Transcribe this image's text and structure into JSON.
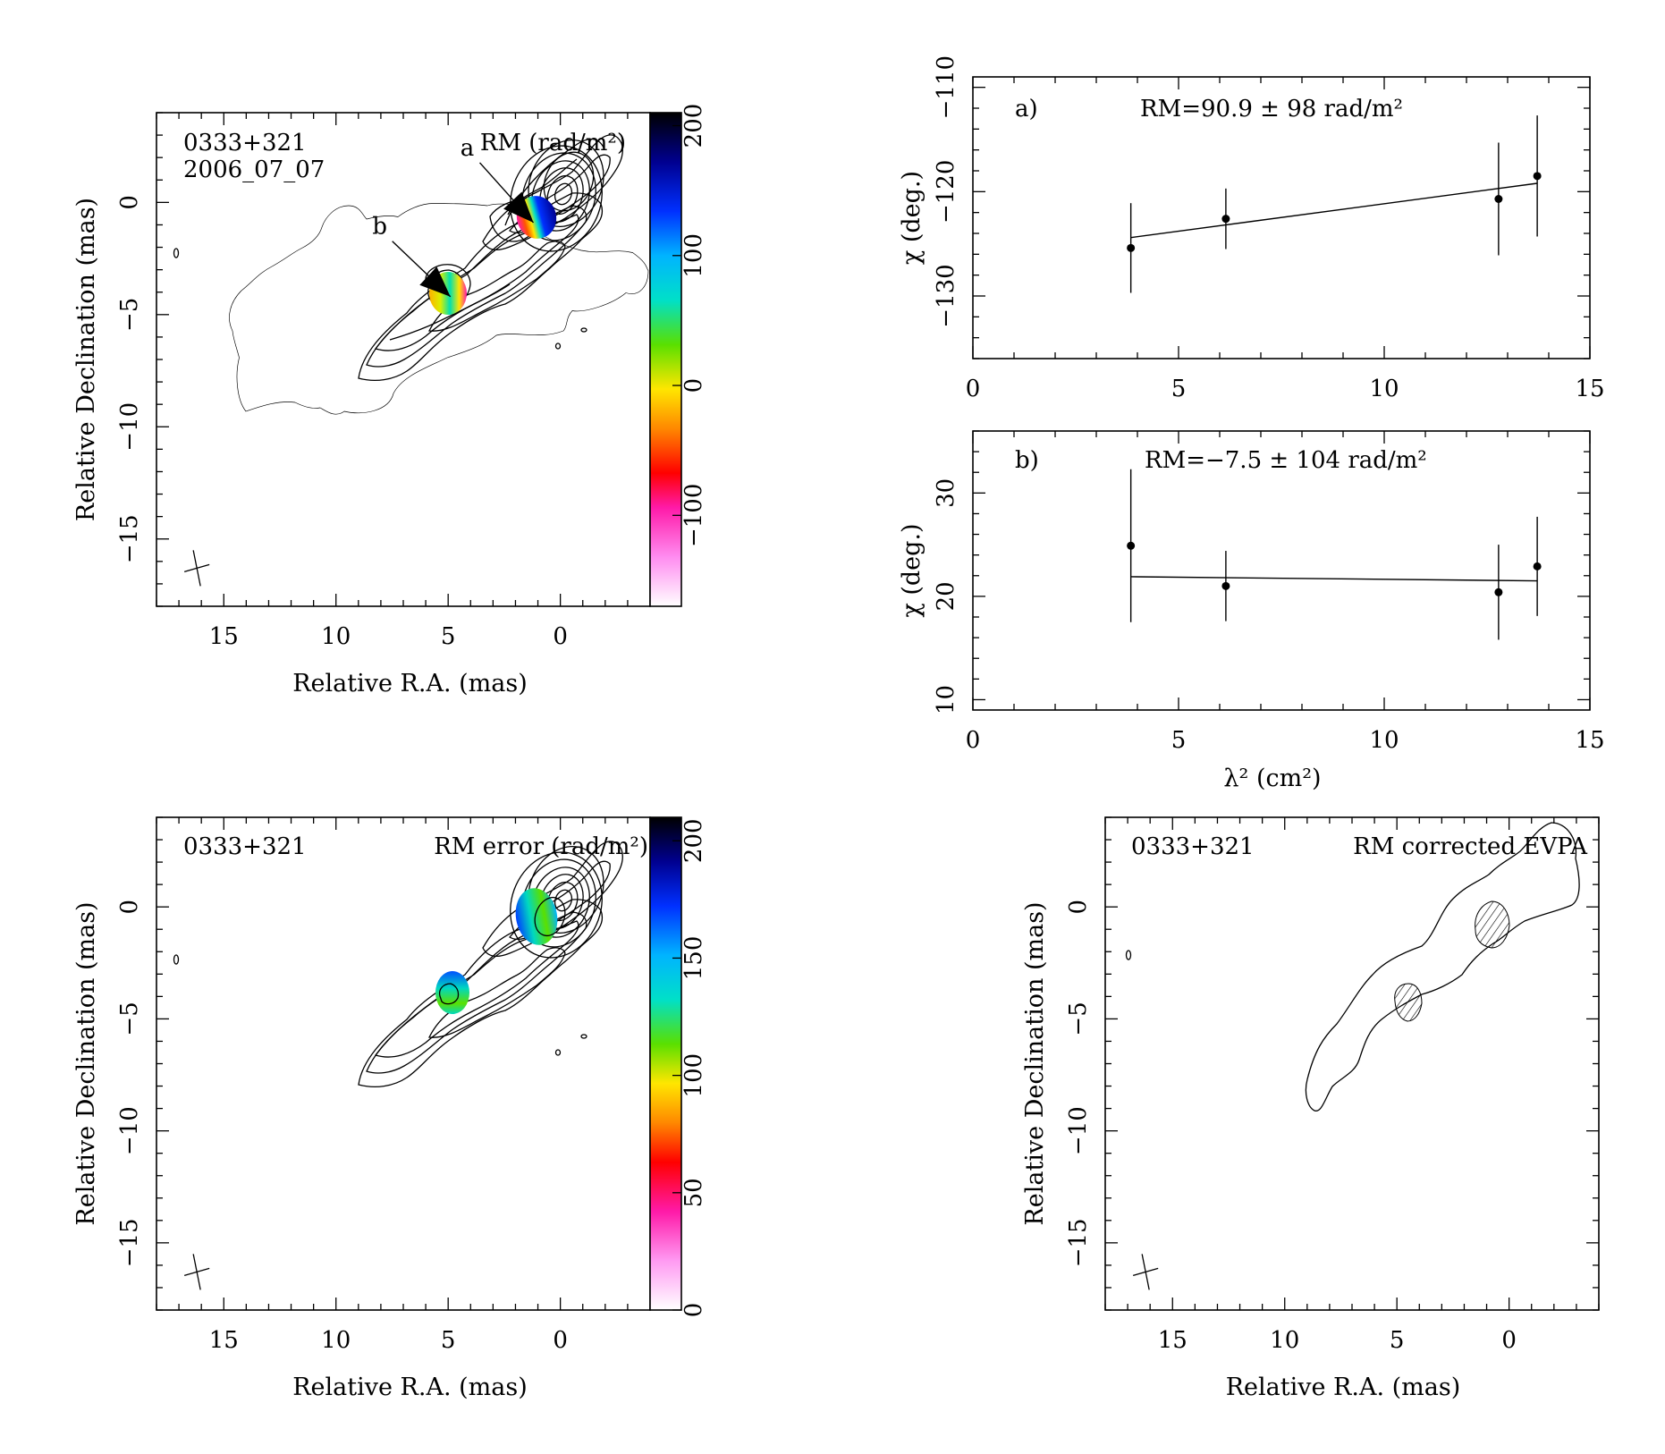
{
  "source_name": "0333+321",
  "epoch": "2006_07_07",
  "chart_data": [
    {
      "type": "heatmap",
      "id": "rm-map",
      "label": "RM (rad/m²)",
      "xlabel": "Relative R.A. (mas)",
      "ylabel": "Relative Declination (mas)",
      "xlim": [
        18,
        -4
      ],
      "ylim": [
        -18,
        4
      ],
      "xticks": [
        15,
        10,
        5,
        0
      ],
      "yticks": [
        0,
        -5,
        -10,
        -15
      ],
      "colorbar": {
        "range": [
          -170,
          210
        ],
        "ticks": [
          200,
          100,
          0,
          -100
        ]
      },
      "markers": [
        {
          "label": "a",
          "x": 1.2,
          "y": -0.9
        },
        {
          "label": "b",
          "x": 4.9,
          "y": -4.2
        }
      ]
    },
    {
      "type": "scatter",
      "id": "fit-a",
      "label": "a)",
      "annotation": "RM=90.9 ± 98 rad/m²",
      "xlabel": "",
      "ylabel": "χ (deg.)",
      "xlim": [
        0,
        15
      ],
      "ylim": [
        -136,
        -109
      ],
      "xticks": [
        0,
        5,
        10,
        15
      ],
      "yticks": [
        -110,
        -120,
        -130
      ],
      "points": [
        {
          "x": 3.84,
          "y": -125.4,
          "err": 4.3
        },
        {
          "x": 6.15,
          "y": -122.6,
          "err": 2.9
        },
        {
          "x": 12.78,
          "y": -120.7,
          "err": 5.4
        },
        {
          "x": 13.72,
          "y": -118.5,
          "err": 5.8
        }
      ],
      "fit": [
        [
          3.84,
          -124.4
        ],
        [
          13.72,
          -119.2
        ]
      ]
    },
    {
      "type": "scatter",
      "id": "fit-b",
      "label": "b)",
      "annotation": "RM=−7.5 ± 104 rad/m²",
      "xlabel": "λ² (cm²)",
      "ylabel": "χ (deg.)",
      "xlim": [
        0,
        15
      ],
      "ylim": [
        9,
        36
      ],
      "xticks": [
        0,
        5,
        10,
        15
      ],
      "yticks": [
        30,
        20,
        10
      ],
      "points": [
        {
          "x": 3.84,
          "y": 24.9,
          "err": 7.4
        },
        {
          "x": 6.15,
          "y": 21.0,
          "err": 3.4
        },
        {
          "x": 12.78,
          "y": 20.4,
          "err": 4.6
        },
        {
          "x": 13.72,
          "y": 22.9,
          "err": 4.8
        }
      ],
      "fit": [
        [
          3.84,
          21.9
        ],
        [
          13.72,
          21.5
        ]
      ]
    },
    {
      "type": "heatmap",
      "id": "rm-error-map",
      "label": "RM error (rad/m²)",
      "xlabel": "Relative R.A. (mas)",
      "ylabel": "Relative Declination (mas)",
      "xlim": [
        18,
        -4
      ],
      "ylim": [
        -18,
        4
      ],
      "xticks": [
        15,
        10,
        5,
        0
      ],
      "yticks": [
        0,
        -5,
        -10,
        -15
      ],
      "colorbar": {
        "range": [
          0,
          210
        ],
        "ticks": [
          200,
          150,
          100,
          50,
          0
        ]
      }
    },
    {
      "type": "scatter",
      "id": "evpa-map",
      "label": "RM corrected EVPA",
      "xlabel": "Relative R.A. (mas)",
      "ylabel": "Relative Declination (mas)",
      "xlim": [
        18,
        -4
      ],
      "ylim": [
        -18,
        4
      ],
      "xticks": [
        15,
        10,
        5,
        0
      ],
      "yticks": [
        0,
        -5,
        -10,
        -15
      ]
    }
  ]
}
